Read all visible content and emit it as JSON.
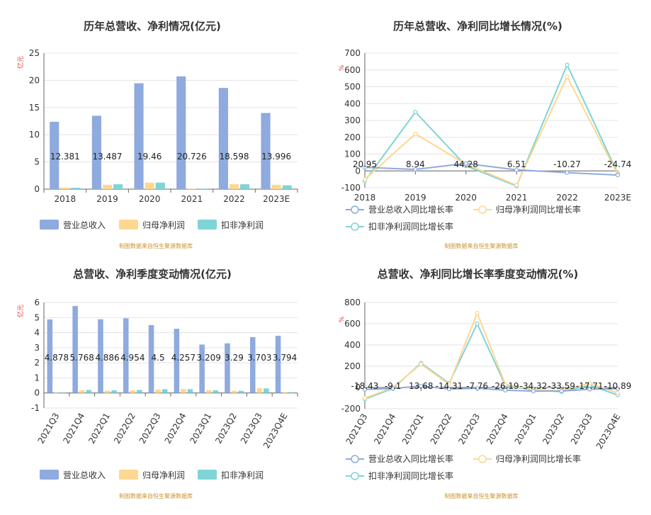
{
  "colors": {
    "revenue": "#8eaadf",
    "net": "#fed792",
    "deducted": "#7fd4d6"
  },
  "source_text": "制图数据来自恒生聚源数据库",
  "chart_data": [
    {
      "type": "bar",
      "title": "历年总营收、净利情况(亿元)",
      "unit": "亿元",
      "categories": [
        "2018",
        "2019",
        "2020",
        "2021",
        "2022",
        "2023E"
      ],
      "ylim": [
        0,
        25
      ],
      "yticks": [
        0,
        5,
        10,
        15,
        20,
        25
      ],
      "series": [
        {
          "name": "营业总收入",
          "values": [
            12.381,
            13.487,
            19.46,
            20.726,
            18.598,
            13.996
          ],
          "labels": [
            "12.381",
            "13.487",
            "19.46",
            "20.726",
            "18.598",
            "13.996"
          ]
        },
        {
          "name": "归母净利润",
          "values": [
            0.3,
            0.8,
            1.2,
            0.1,
            0.9,
            0.8
          ]
        },
        {
          "name": "扣非净利润",
          "values": [
            0.25,
            0.9,
            1.2,
            0.1,
            0.9,
            0.7
          ]
        }
      ],
      "legend": "bottom",
      "grid": true
    },
    {
      "type": "line",
      "title": "历年总营收、净利同比增长情况(%)",
      "unit": "%",
      "categories": [
        "2018",
        "2019",
        "2020",
        "2021",
        "2022",
        "2023E"
      ],
      "ylim": [
        -100,
        700
      ],
      "yticks": [
        -100,
        0,
        100,
        200,
        300,
        400,
        500,
        600,
        700
      ],
      "series": [
        {
          "name": "营业总收入同比增长率",
          "values": [
            20.95,
            8.94,
            44.28,
            6.51,
            -10.27,
            -24.74
          ],
          "labels": [
            "20.95",
            "8.94",
            "44.28",
            "6.51",
            "-10.27",
            "-24.74"
          ]
        },
        {
          "name": "归母净利润同比增长率",
          "values": [
            -50,
            220,
            40,
            -85,
            560,
            -20
          ]
        },
        {
          "name": "扣非净利润同比增长率",
          "values": [
            -60,
            350,
            30,
            -90,
            630,
            -15
          ]
        }
      ],
      "legend": "bottom",
      "grid": true
    },
    {
      "type": "bar",
      "title": "总营收、净利季度变动情况(亿元)",
      "unit": "亿元",
      "categories": [
        "2021Q3",
        "2021Q4",
        "2022Q1",
        "2022Q2",
        "2022Q3",
        "2022Q4",
        "2023Q1",
        "2023Q2",
        "2023Q3",
        "2023Q4E"
      ],
      "ylim": [
        -1,
        6
      ],
      "yticks": [
        -1,
        0,
        1,
        2,
        3,
        4,
        5,
        6
      ],
      "series": [
        {
          "name": "营业总收入",
          "values": [
            4.878,
            5.768,
            4.886,
            4.954,
            4.5,
            4.257,
            3.209,
            3.29,
            3.703,
            3.794
          ],
          "labels": [
            "4.878",
            "5.768",
            "4.886",
            "4.954",
            "4.5",
            "4.257",
            "3.209",
            "3.29",
            "3.703",
            "3.794"
          ]
        },
        {
          "name": "归母净利润",
          "values": [
            -0.05,
            0.18,
            0.15,
            0.18,
            0.22,
            0.27,
            0.18,
            0.15,
            0.32,
            0.05
          ]
        },
        {
          "name": "扣非净利润",
          "values": [
            -0.04,
            0.2,
            0.18,
            0.2,
            0.25,
            0.25,
            0.18,
            0.14,
            0.3,
            0.05
          ]
        }
      ],
      "legend": "bottom",
      "grid": true
    },
    {
      "type": "line",
      "title": "总营收、净利同比增长率季度变动情况(%)",
      "unit": "%",
      "categories": [
        "2021Q3",
        "2021Q4",
        "2022Q1",
        "2022Q2",
        "2022Q3",
        "2022Q4",
        "2023Q1",
        "2023Q2",
        "2023Q3",
        "2023Q4E"
      ],
      "ylim": [
        -200,
        800
      ],
      "yticks": [
        -200,
        0,
        200,
        400,
        600,
        800
      ],
      "series": [
        {
          "name": "营业总收入同比增长率",
          "values": [
            -18.43,
            -9.1,
            13.68,
            -14.31,
            -7.76,
            -26.19,
            -34.32,
            -33.59,
            -17.71,
            -10.89
          ],
          "labels": [
            "-18.43",
            "-9.1",
            "13.68",
            "-14.31",
            "-7.76",
            "-26.19",
            "-34.32",
            "-33.59",
            "-17.71",
            "-10.89"
          ]
        },
        {
          "name": "归母净利润同比增长率",
          "values": [
            -100,
            0,
            220,
            30,
            700,
            30,
            -20,
            -30,
            40,
            -50
          ]
        },
        {
          "name": "扣非净利润同比增长率",
          "values": [
            -110,
            -10,
            230,
            40,
            600,
            20,
            -25,
            -40,
            20,
            -70
          ]
        }
      ],
      "legend": "bottom",
      "grid": true
    }
  ]
}
